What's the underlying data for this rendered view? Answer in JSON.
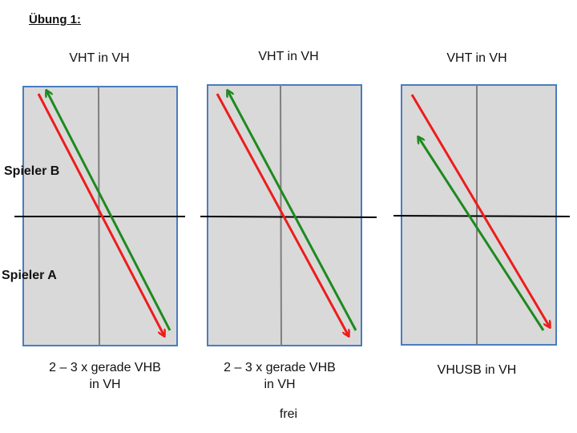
{
  "exercise_title": "Übung 1:",
  "players": {
    "top": "Spieler B",
    "bottom": "Spieler A"
  },
  "panels": [
    {
      "heading": "VHT in VH",
      "caption_line1": "2 – 3 x gerade VHB",
      "caption_line2": "in VH",
      "red_direction": "down",
      "green_direction": "up"
    },
    {
      "heading": "VHT in VH",
      "caption_line1": "2 – 3 x gerade VHB",
      "caption_line2": "in VH",
      "red_direction": "down",
      "green_direction": "up"
    },
    {
      "heading": "VHT in VH",
      "caption_line1": "VHUSB in VH",
      "caption_line2": "",
      "red_direction": "down",
      "green_direction": "up"
    }
  ],
  "footer_note": "frei",
  "colors": {
    "table": "#d9d9d9",
    "table_border": "#4a7cc0",
    "center_line": "#7f7f7f",
    "net": "#000000",
    "red_arrow": "#ee1c1c",
    "green_arrow": "#1e8a1e"
  }
}
